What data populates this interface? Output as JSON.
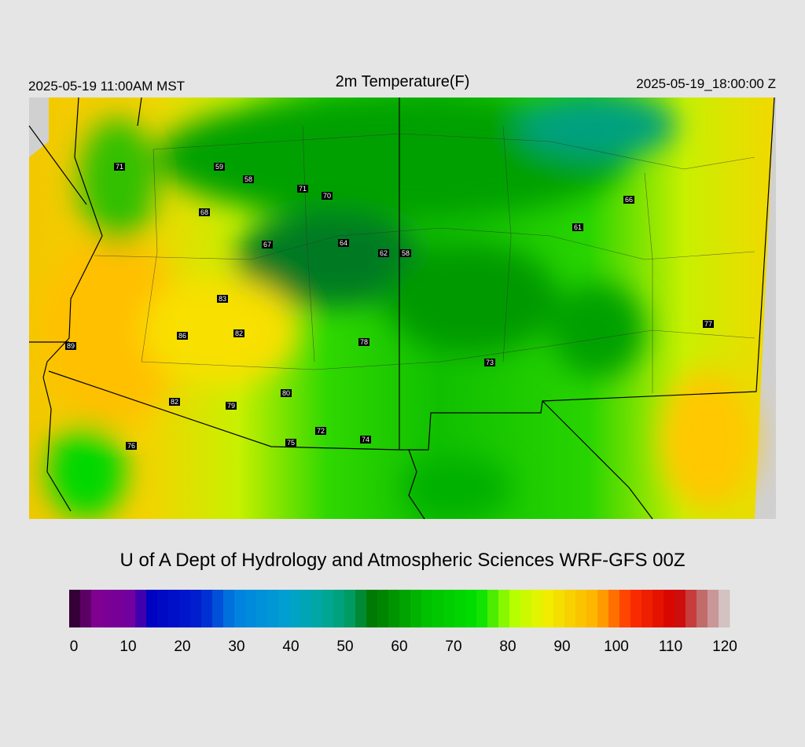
{
  "header": {
    "left": "2025-05-19 11:00AM MST",
    "title": "2m Temperature(F)",
    "right": "2025-05-19_18:00:00 Z"
  },
  "stations": [
    71,
    59,
    58,
    71,
    70,
    68,
    67,
    64,
    62,
    58,
    66,
    61,
    83,
    86,
    82,
    89,
    78,
    73,
    77,
    82,
    79,
    80,
    72,
    75,
    74,
    76
  ],
  "credit": "U of A Dept of Hydrology and Atmospheric Sciences WRF-GFS 00Z",
  "colorbar": {
    "lim": [
      0,
      120
    ],
    "ticks": [
      0,
      10,
      20,
      30,
      40,
      50,
      60,
      70,
      80,
      90,
      100,
      110,
      120
    ]
  }
}
